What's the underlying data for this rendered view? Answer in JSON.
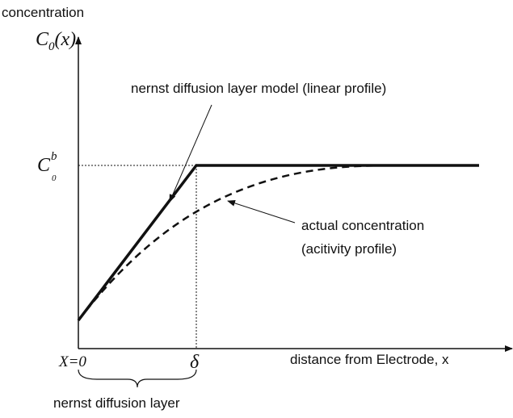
{
  "diagram": {
    "y_axis_title": "concentration",
    "y_axis_symbol": {
      "symbol": "C",
      "subscript": "0",
      "suffix": "(x)"
    },
    "bulk_symbol": {
      "symbol": "C",
      "subscript": "0",
      "superscript": "b"
    },
    "model_label": "nernst diffusion layer model (linear profile)",
    "actual_label": [
      "actual concentration",
      "(acitivity profile)"
    ],
    "origin_label": "X=0",
    "delta_label": "δ",
    "x_axis_title": "distance from Electrode, x",
    "layer_label": "nernst diffusion layer"
  }
}
